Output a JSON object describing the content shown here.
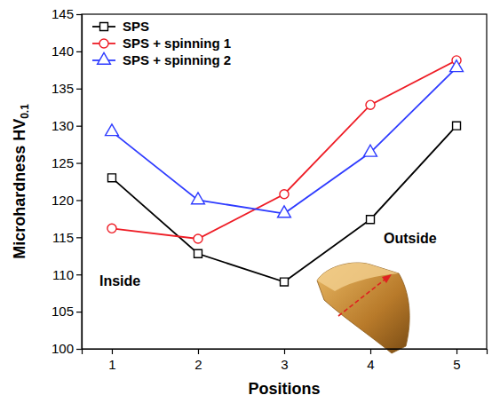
{
  "chart_data": {
    "type": "line",
    "x": [
      1,
      2,
      3,
      4,
      5
    ],
    "xlim": [
      0.65,
      5.35
    ],
    "xticks": [
      1,
      2,
      3,
      4,
      5
    ],
    "ylim": [
      100,
      145
    ],
    "yticks": [
      100,
      105,
      110,
      115,
      120,
      125,
      130,
      135,
      140,
      145
    ],
    "x_label": "Positions",
    "y_label": "Microhardness HV0.1",
    "legend": "upper left",
    "annotations": [
      "Inside",
      "Outside"
    ],
    "series": [
      {
        "name": "SPS",
        "color": "#000000",
        "marker": "square",
        "line_style": "solid",
        "values": [
          123,
          112.8,
          109,
          117.4,
          130
        ]
      },
      {
        "name": "SPS + spinning 1",
        "color": "#ee1c25",
        "marker": "circle",
        "line_style": "solid",
        "values": [
          116.2,
          114.8,
          120.8,
          132.8,
          138.8
        ]
      },
      {
        "name": "SPS + spinning 2",
        "color": "#2e3bff",
        "marker": "triangle",
        "line_style": "solid",
        "values": [
          129.2,
          120,
          118.2,
          126.4,
          137.8
        ]
      }
    ]
  }
}
